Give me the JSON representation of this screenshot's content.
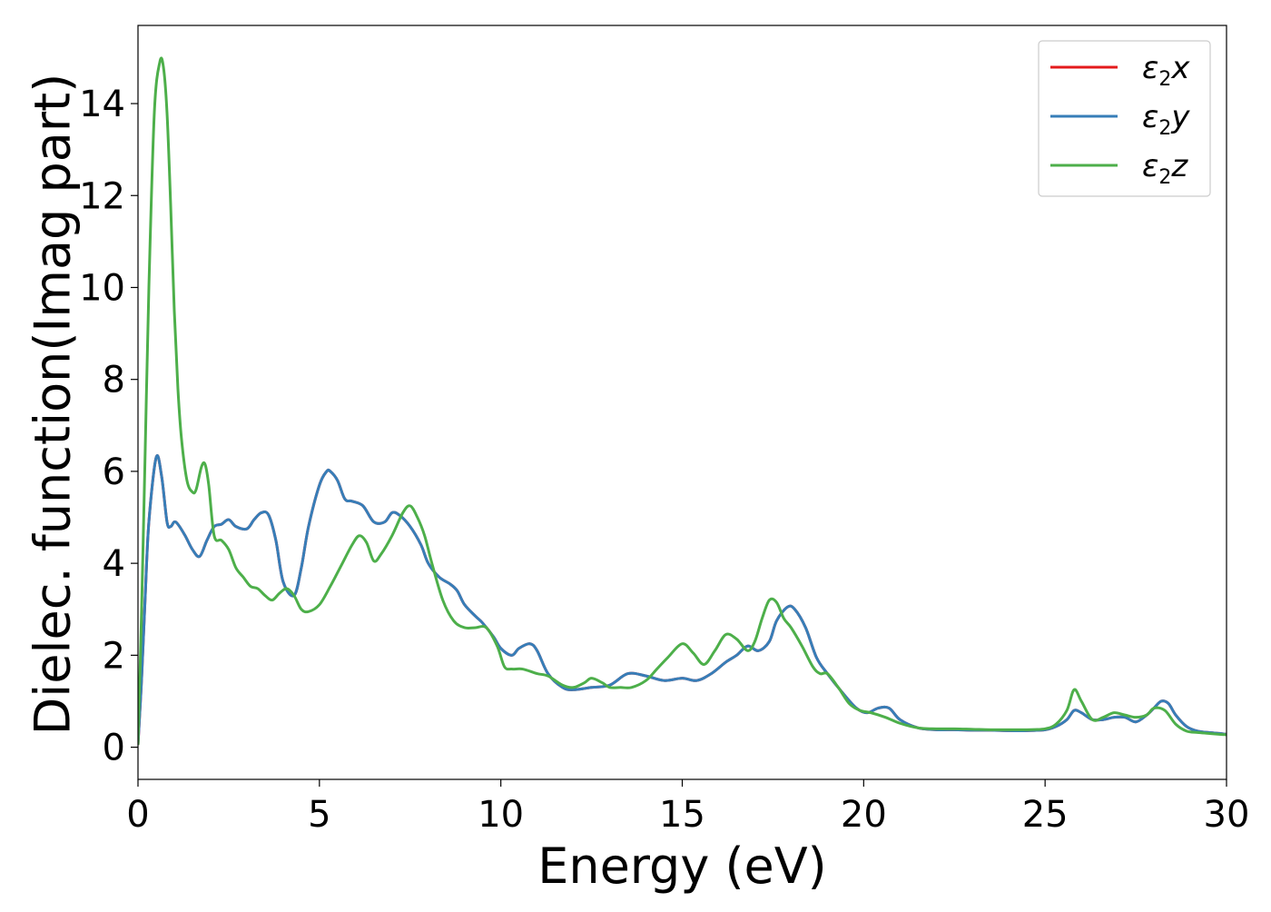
{
  "chart_data": {
    "type": "line",
    "xlabel": "Energy (eV)",
    "ylabel": "Dielec. function(Imag part)",
    "xlim": [
      0,
      30
    ],
    "ylim": [
      -0.7,
      15.7
    ],
    "xticks": [
      0,
      5,
      10,
      15,
      20,
      25,
      30
    ],
    "yticks": [
      0,
      2,
      4,
      6,
      8,
      10,
      12,
      14
    ],
    "xtick_labels": [
      "0",
      "5",
      "10",
      "15",
      "20",
      "25",
      "30"
    ],
    "ytick_labels": [
      "0",
      "2",
      "4",
      "6",
      "8",
      "10",
      "12",
      "14"
    ],
    "grid": false,
    "legend_position": "top-right",
    "legend": [
      {
        "symbol": "ε",
        "subscript": "2",
        "suffix": "x",
        "color": "#e41a1c"
      },
      {
        "symbol": "ε",
        "subscript": "2",
        "suffix": "y",
        "color": "#377eb8"
      },
      {
        "symbol": "ε",
        "subscript": "2",
        "suffix": "z",
        "color": "#4daf4a"
      }
    ],
    "series": [
      {
        "name": "ε2x",
        "color": "#e41a1c",
        "x": [
          0,
          0.1,
          0.2,
          0.3,
          0.5,
          0.65,
          0.8,
          0.9,
          1.0,
          1.1,
          1.3,
          1.5,
          1.7,
          1.9,
          2.1,
          2.3,
          2.5,
          2.7,
          3.0,
          3.2,
          3.4,
          3.6,
          3.8,
          4.0,
          4.3,
          4.5,
          4.7,
          5.0,
          5.2,
          5.3,
          5.5,
          5.7,
          5.9,
          6.2,
          6.5,
          6.8,
          7.0,
          7.2,
          7.5,
          7.8,
          8.0,
          8.3,
          8.6,
          8.8,
          9.0,
          9.3,
          9.5,
          9.8,
          10.0,
          10.3,
          10.5,
          10.8,
          11.0,
          11.3,
          11.7,
          12.0,
          12.5,
          13.0,
          13.5,
          14.0,
          14.5,
          15.0,
          15.4,
          15.8,
          16.2,
          16.5,
          16.8,
          17.1,
          17.4,
          17.6,
          17.9,
          18.1,
          18.4,
          18.7,
          19.0,
          19.4,
          19.8,
          20.1,
          20.4,
          20.7,
          21.0,
          21.5,
          22.0,
          22.5,
          23.0,
          23.5,
          24.0,
          24.5,
          25.0,
          25.3,
          25.6,
          25.8,
          26.0,
          26.3,
          26.6,
          26.9,
          27.2,
          27.5,
          27.8,
          28.0,
          28.2,
          28.4,
          28.6,
          28.9,
          29.2,
          29.5,
          29.8,
          30.0
        ],
        "y": [
          0.05,
          1.5,
          3.3,
          4.9,
          6.3,
          5.9,
          4.9,
          4.8,
          4.9,
          4.85,
          4.6,
          4.3,
          4.15,
          4.5,
          4.8,
          4.85,
          4.95,
          4.8,
          4.75,
          4.95,
          5.1,
          5.05,
          4.5,
          3.6,
          3.3,
          3.9,
          4.8,
          5.7,
          6.0,
          6.0,
          5.8,
          5.4,
          5.35,
          5.25,
          4.9,
          4.9,
          5.1,
          5.05,
          4.8,
          4.4,
          4.0,
          3.7,
          3.55,
          3.4,
          3.1,
          2.85,
          2.7,
          2.4,
          2.15,
          2.0,
          2.15,
          2.25,
          2.1,
          1.6,
          1.3,
          1.25,
          1.3,
          1.35,
          1.6,
          1.55,
          1.45,
          1.5,
          1.45,
          1.6,
          1.85,
          2.0,
          2.2,
          2.1,
          2.3,
          2.75,
          3.05,
          3.0,
          2.6,
          1.95,
          1.6,
          1.2,
          0.85,
          0.75,
          0.85,
          0.85,
          0.6,
          0.42,
          0.38,
          0.38,
          0.37,
          0.37,
          0.36,
          0.36,
          0.38,
          0.45,
          0.6,
          0.8,
          0.75,
          0.6,
          0.6,
          0.65,
          0.65,
          0.55,
          0.7,
          0.85,
          1.0,
          0.95,
          0.7,
          0.45,
          0.35,
          0.32,
          0.3,
          0.28
        ]
      },
      {
        "name": "ε2y",
        "color": "#377eb8",
        "x": [
          0,
          0.1,
          0.2,
          0.3,
          0.5,
          0.65,
          0.8,
          0.9,
          1.0,
          1.1,
          1.3,
          1.5,
          1.7,
          1.9,
          2.1,
          2.3,
          2.5,
          2.7,
          3.0,
          3.2,
          3.4,
          3.6,
          3.8,
          4.0,
          4.3,
          4.5,
          4.7,
          5.0,
          5.2,
          5.3,
          5.5,
          5.7,
          5.9,
          6.2,
          6.5,
          6.8,
          7.0,
          7.2,
          7.5,
          7.8,
          8.0,
          8.3,
          8.6,
          8.8,
          9.0,
          9.3,
          9.5,
          9.8,
          10.0,
          10.3,
          10.5,
          10.8,
          11.0,
          11.3,
          11.7,
          12.0,
          12.5,
          13.0,
          13.5,
          14.0,
          14.5,
          15.0,
          15.4,
          15.8,
          16.2,
          16.5,
          16.8,
          17.1,
          17.4,
          17.6,
          17.9,
          18.1,
          18.4,
          18.7,
          19.0,
          19.4,
          19.8,
          20.1,
          20.4,
          20.7,
          21.0,
          21.5,
          22.0,
          22.5,
          23.0,
          23.5,
          24.0,
          24.5,
          25.0,
          25.3,
          25.6,
          25.8,
          26.0,
          26.3,
          26.6,
          26.9,
          27.2,
          27.5,
          27.8,
          28.0,
          28.2,
          28.4,
          28.6,
          28.9,
          29.2,
          29.5,
          29.8,
          30.0
        ],
        "y": [
          0.05,
          1.5,
          3.3,
          4.9,
          6.3,
          5.9,
          4.9,
          4.8,
          4.9,
          4.85,
          4.6,
          4.3,
          4.15,
          4.5,
          4.8,
          4.85,
          4.95,
          4.8,
          4.75,
          4.95,
          5.1,
          5.05,
          4.5,
          3.6,
          3.3,
          3.9,
          4.8,
          5.7,
          6.0,
          6.0,
          5.8,
          5.4,
          5.35,
          5.25,
          4.9,
          4.9,
          5.1,
          5.05,
          4.8,
          4.4,
          4.0,
          3.7,
          3.55,
          3.4,
          3.1,
          2.85,
          2.7,
          2.4,
          2.15,
          2.0,
          2.15,
          2.25,
          2.1,
          1.6,
          1.3,
          1.25,
          1.3,
          1.35,
          1.6,
          1.55,
          1.45,
          1.5,
          1.45,
          1.6,
          1.85,
          2.0,
          2.2,
          2.1,
          2.3,
          2.75,
          3.05,
          3.0,
          2.6,
          1.95,
          1.6,
          1.2,
          0.85,
          0.75,
          0.85,
          0.85,
          0.6,
          0.42,
          0.38,
          0.38,
          0.37,
          0.37,
          0.36,
          0.36,
          0.38,
          0.45,
          0.6,
          0.8,
          0.75,
          0.6,
          0.6,
          0.65,
          0.65,
          0.55,
          0.7,
          0.85,
          1.0,
          0.95,
          0.7,
          0.45,
          0.35,
          0.32,
          0.3,
          0.28
        ]
      },
      {
        "name": "ε2z",
        "color": "#4daf4a",
        "x": [
          0,
          0.1,
          0.2,
          0.3,
          0.45,
          0.6,
          0.7,
          0.8,
          0.9,
          1.0,
          1.1,
          1.2,
          1.35,
          1.5,
          1.6,
          1.75,
          1.85,
          1.95,
          2.1,
          2.3,
          2.5,
          2.7,
          2.9,
          3.1,
          3.3,
          3.5,
          3.7,
          3.9,
          4.1,
          4.3,
          4.5,
          4.7,
          5.0,
          5.3,
          5.6,
          5.9,
          6.1,
          6.3,
          6.5,
          6.7,
          7.0,
          7.3,
          7.5,
          7.7,
          7.9,
          8.1,
          8.4,
          8.7,
          9.0,
          9.3,
          9.6,
          9.9,
          10.1,
          10.3,
          10.6,
          11.0,
          11.3,
          11.7,
          12.0,
          12.3,
          12.5,
          12.8,
          13.0,
          13.3,
          13.6,
          14.0,
          14.3,
          14.6,
          15.0,
          15.3,
          15.6,
          15.9,
          16.2,
          16.5,
          16.8,
          17.0,
          17.2,
          17.4,
          17.6,
          17.8,
          18.0,
          18.3,
          18.6,
          18.8,
          19.0,
          19.3,
          19.6,
          19.9,
          20.2,
          20.6,
          21.0,
          21.5,
          22.0,
          22.5,
          23.0,
          23.5,
          24.0,
          24.5,
          25.0,
          25.3,
          25.6,
          25.8,
          26.0,
          26.3,
          26.6,
          26.9,
          27.2,
          27.5,
          27.8,
          28.0,
          28.3,
          28.6,
          28.9,
          29.2,
          29.5,
          29.8,
          30.0
        ],
        "y": [
          0.05,
          3.0,
          6.5,
          10.0,
          13.8,
          14.9,
          14.8,
          13.8,
          11.8,
          9.5,
          7.8,
          6.7,
          5.8,
          5.55,
          5.6,
          6.1,
          6.15,
          5.7,
          4.6,
          4.5,
          4.3,
          3.9,
          3.7,
          3.5,
          3.45,
          3.3,
          3.2,
          3.35,
          3.45,
          3.3,
          3.0,
          2.95,
          3.1,
          3.5,
          3.95,
          4.4,
          4.6,
          4.45,
          4.05,
          4.2,
          4.6,
          5.1,
          5.25,
          5.0,
          4.6,
          4.0,
          3.2,
          2.75,
          2.6,
          2.6,
          2.6,
          2.2,
          1.75,
          1.7,
          1.7,
          1.6,
          1.55,
          1.35,
          1.3,
          1.4,
          1.5,
          1.4,
          1.3,
          1.3,
          1.3,
          1.45,
          1.7,
          1.95,
          2.25,
          2.05,
          1.8,
          2.1,
          2.45,
          2.35,
          2.1,
          2.3,
          2.8,
          3.2,
          3.15,
          2.8,
          2.6,
          2.2,
          1.75,
          1.6,
          1.6,
          1.3,
          0.95,
          0.8,
          0.75,
          0.65,
          0.52,
          0.42,
          0.4,
          0.4,
          0.39,
          0.38,
          0.38,
          0.38,
          0.4,
          0.5,
          0.8,
          1.25,
          1.0,
          0.6,
          0.65,
          0.75,
          0.7,
          0.65,
          0.7,
          0.85,
          0.8,
          0.5,
          0.35,
          0.32,
          0.3,
          0.28,
          0.27
        ]
      }
    ]
  }
}
